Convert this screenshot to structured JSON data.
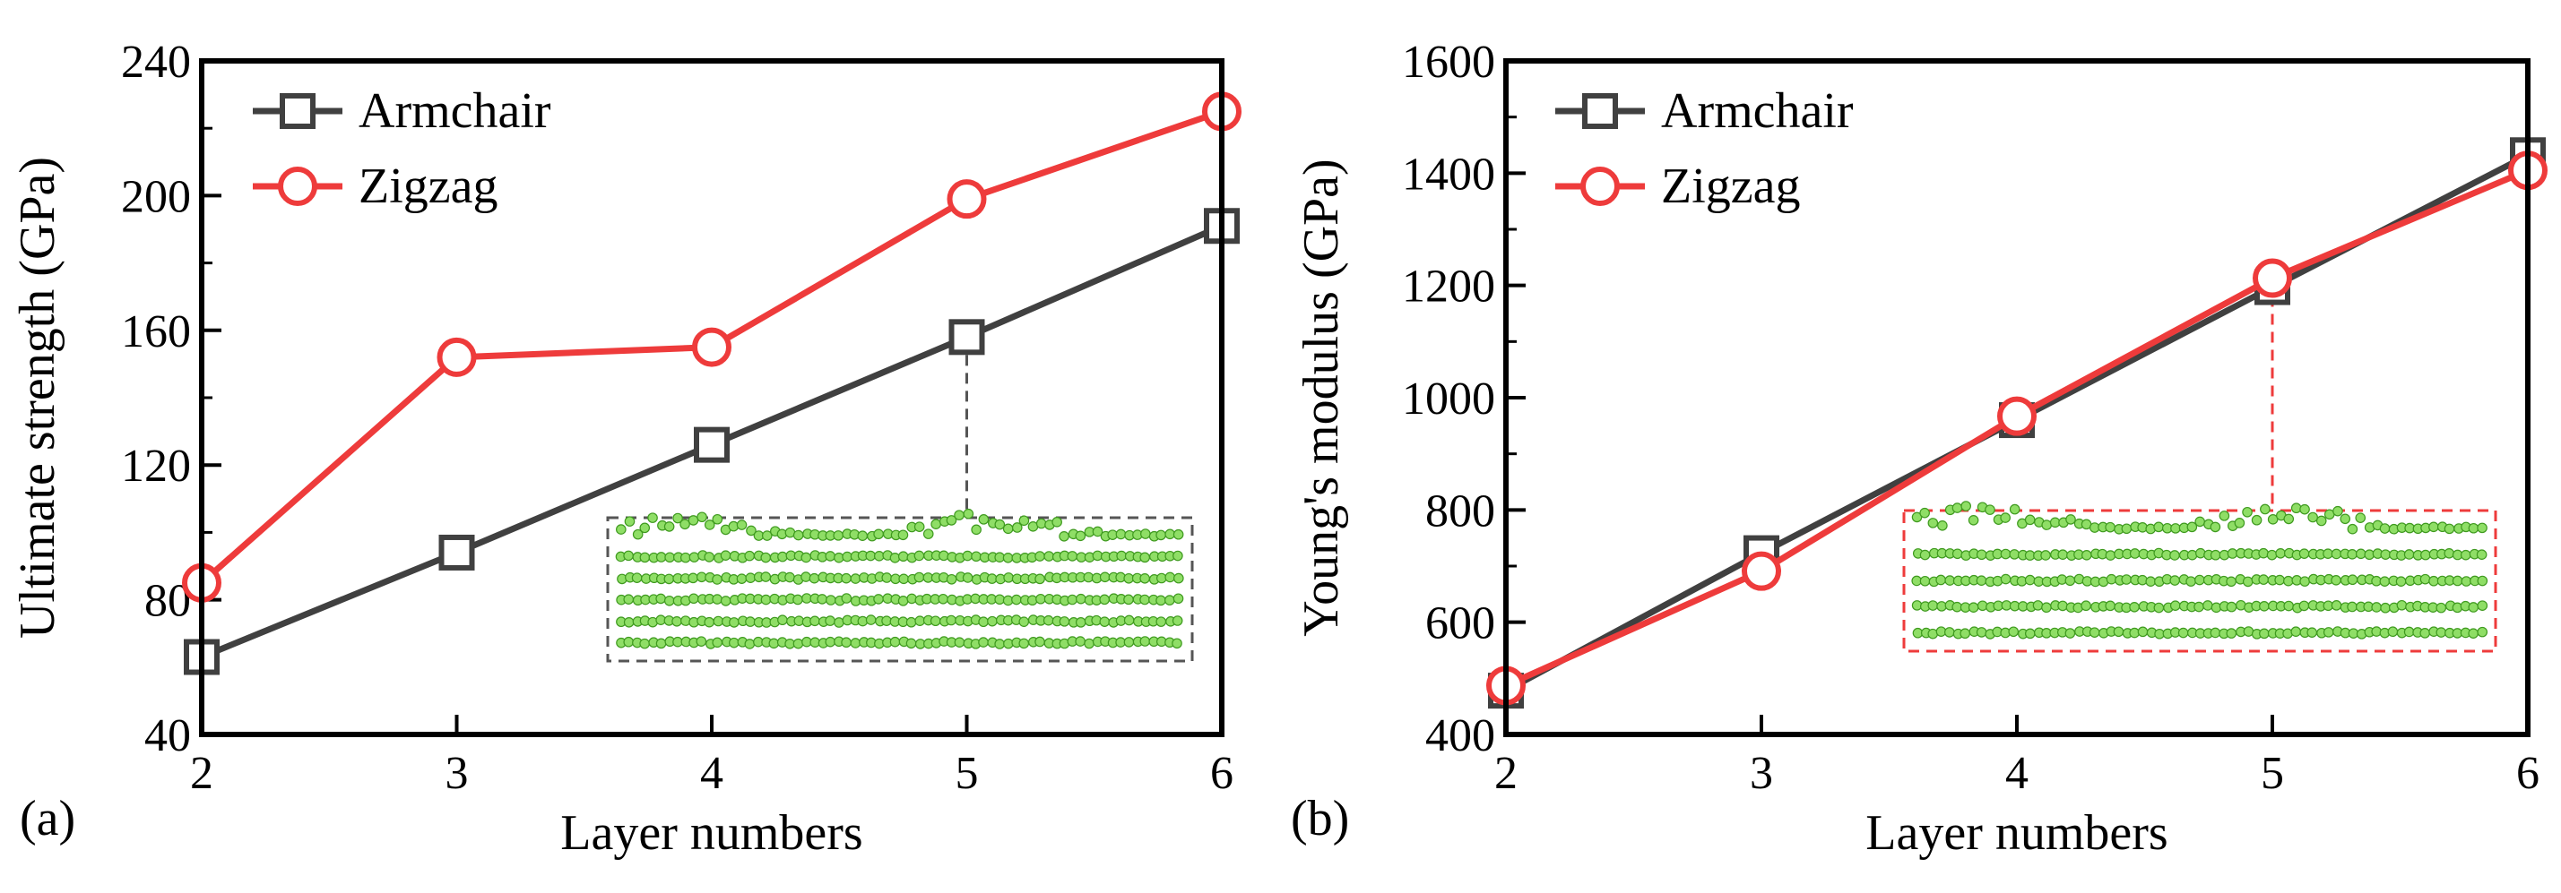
{
  "colors": {
    "armchair": "#404040",
    "zigzag": "#ee3b3b",
    "atom_fill": "#8fde66",
    "atom_stroke": "#3f9a1f",
    "inset_border_a": "#555555",
    "inset_border_b": "#ee3b3b"
  },
  "chart_data": [
    {
      "type": "line",
      "panel_label": "(a)",
      "title": "",
      "xlabel": "Layer numbers",
      "ylabel": "Ultimate strength (GPa)",
      "x": [
        2,
        3,
        4,
        5,
        6
      ],
      "xticks": [
        "2",
        "3",
        "4",
        "5",
        "6"
      ],
      "xlim": [
        2,
        6
      ],
      "ylim": [
        40,
        240
      ],
      "yticks": [
        "40",
        "80",
        "120",
        "160",
        "200",
        "240"
      ],
      "legend_position": "top-left",
      "series": [
        {
          "name": "Armchair",
          "marker": "square",
          "color_key": "armchair",
          "values": [
            63,
            94,
            126,
            158,
            191
          ]
        },
        {
          "name": "Zigzag",
          "marker": "circle",
          "color_key": "zigzag",
          "values": [
            85,
            152,
            155,
            199,
            225
          ]
        }
      ],
      "inset": {
        "anchor_series": 0,
        "anchor_x": 5,
        "description": "atomic structure snapshot"
      }
    },
    {
      "type": "line",
      "panel_label": "(b)",
      "title": "",
      "xlabel": "Layer numbers",
      "ylabel": "Young's modulus (GPa)",
      "x": [
        2,
        3,
        4,
        5,
        6
      ],
      "xticks": [
        "2",
        "3",
        "4",
        "5",
        "6"
      ],
      "xlim": [
        2,
        6
      ],
      "ylim": [
        400,
        1600
      ],
      "yticks": [
        "400",
        "600",
        "800",
        "1000",
        "1200",
        "1400",
        "1600"
      ],
      "legend_position": "top-left",
      "series": [
        {
          "name": "Armchair",
          "marker": "square",
          "color_key": "armchair",
          "values": [
            478,
            723,
            960,
            1197,
            1432
          ]
        },
        {
          "name": "Zigzag",
          "marker": "circle",
          "color_key": "zigzag",
          "values": [
            487,
            691,
            967,
            1213,
            1405
          ]
        }
      ],
      "inset": {
        "anchor_series": 1,
        "anchor_x": 5,
        "description": "atomic structure snapshot"
      }
    }
  ]
}
